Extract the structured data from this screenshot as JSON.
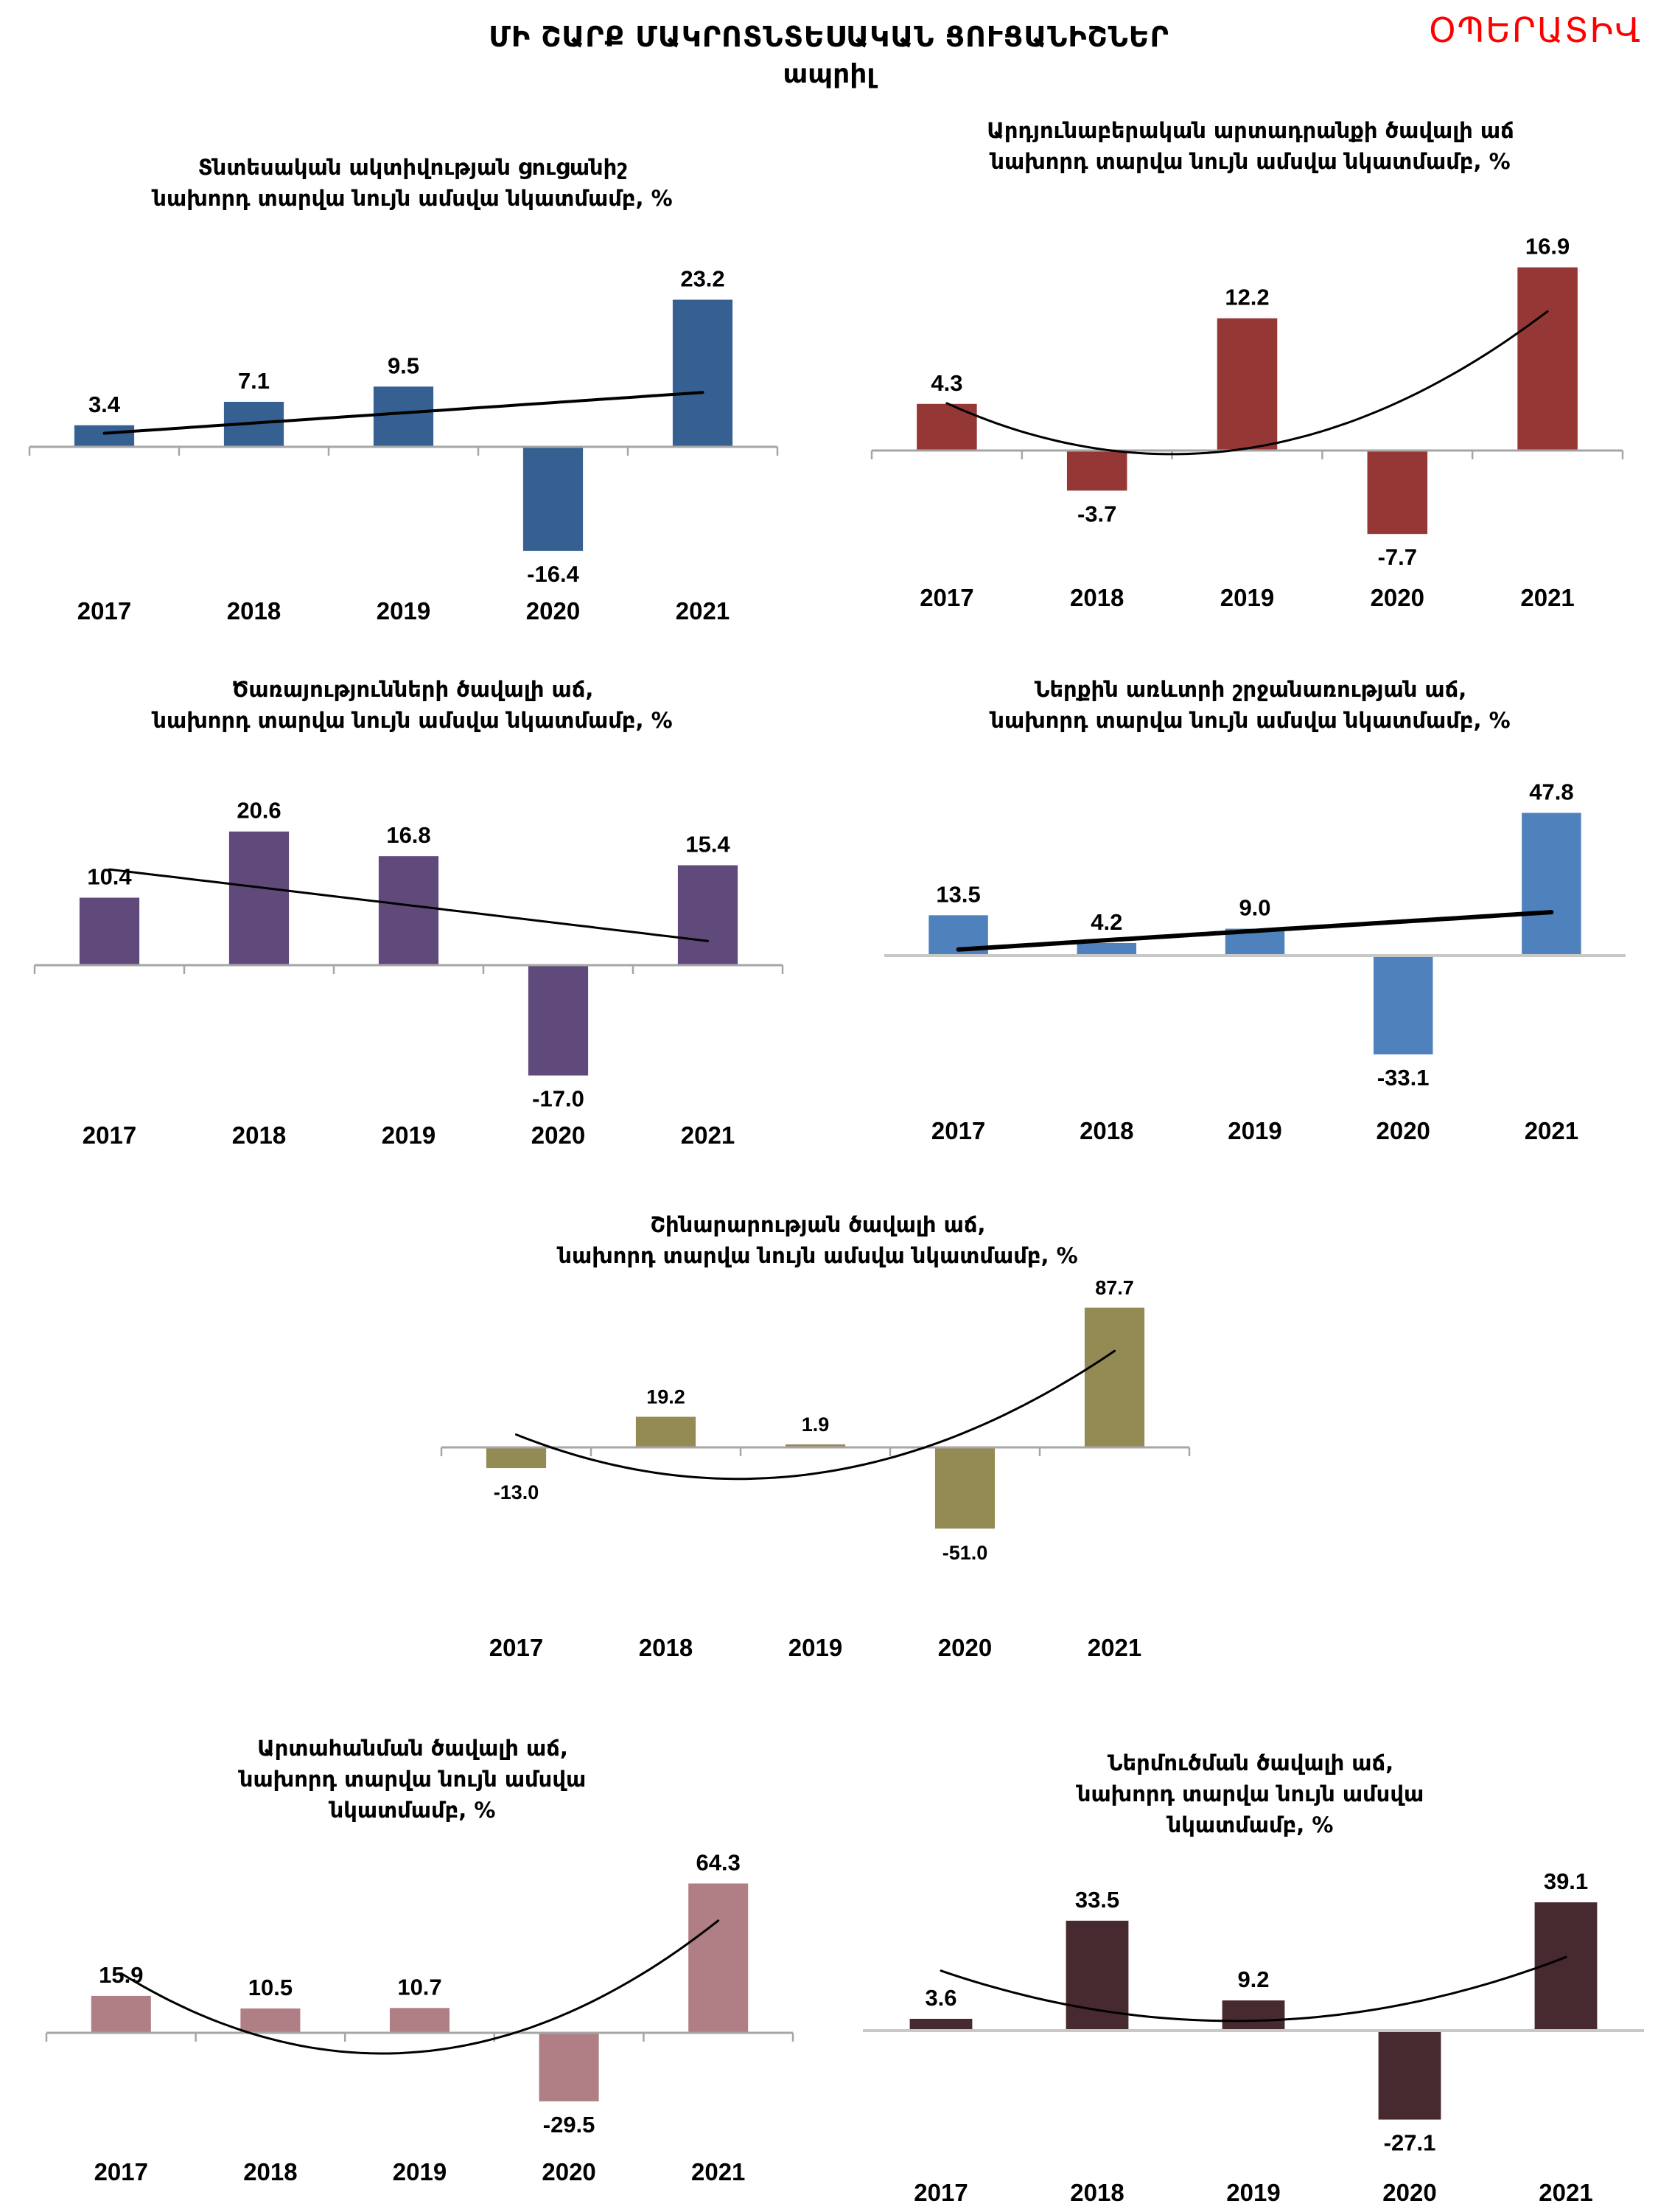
{
  "header": {
    "title": "ՄԻ ՇԱՐՔ ՄԱԿՐՈՏՆՏԵՍԱԿԱՆ ՑՈՒՑԱՆԻՇՆԵՐ",
    "subtitle": "ապրիլ",
    "badge": "ՕՊԵՐԱՏԻՎ",
    "badge_color": "#ff0000"
  },
  "chart_data": [
    {
      "id": "economic-activity",
      "type": "bar",
      "title_lines": [
        "Տնտեսական ակտիվության ցուցանիշ",
        "նախորդ տարվա նույն ամսվա նկատմամբ, %"
      ],
      "categories": [
        "2017",
        "2018",
        "2019",
        "2020",
        "2021"
      ],
      "values": [
        3.4,
        7.1,
        9.5,
        -16.4,
        23.2
      ],
      "labels": [
        "3.4",
        "7.1",
        "9.5",
        "-16.4",
        "23.2"
      ],
      "color": "#376092",
      "trendline": "linear",
      "axis_ticks": true,
      "xlabel": "",
      "ylabel": "",
      "grid": false,
      "legend": "none"
    },
    {
      "id": "industrial-output",
      "type": "bar",
      "title_lines": [
        "Արդյունաբերական արտադրանքի ծավալի աճ",
        "նախորդ տարվա նույն ամսվա նկատմամբ, %"
      ],
      "categories": [
        "2017",
        "2018",
        "2019",
        "2020",
        "2021"
      ],
      "values": [
        4.3,
        -3.7,
        12.2,
        -7.7,
        16.9
      ],
      "labels": [
        "4.3",
        "-3.7",
        "12.2",
        "-7.7",
        "16.9"
      ],
      "color": "#953735",
      "trendline": "polynomial",
      "axis_ticks": true,
      "xlabel": "",
      "ylabel": "",
      "grid": false,
      "legend": "none"
    },
    {
      "id": "services",
      "type": "bar",
      "title_lines": [
        "Ծառայությունների ծավալի աճ,",
        "նախորդ տարվա նույն ամսվա նկատմամբ, %"
      ],
      "categories": [
        "2017",
        "2018",
        "2019",
        "2020",
        "2021"
      ],
      "values": [
        10.4,
        20.6,
        16.8,
        -17.0,
        15.4
      ],
      "labels": [
        "10.4",
        "20.6",
        "16.8",
        "-17.0",
        "15.4"
      ],
      "color": "#604a7b",
      "trendline": "linear",
      "axis_ticks": true,
      "xlabel": "",
      "ylabel": "",
      "grid": false,
      "legend": "none"
    },
    {
      "id": "retail-trade",
      "type": "bar",
      "title_lines": [
        "Ներքին առևտրի շրջանառության աճ,",
        "նախորդ տարվա նույն ամսվա նկատմամբ, %"
      ],
      "categories": [
        "2017",
        "2018",
        "2019",
        "2020",
        "2021"
      ],
      "values": [
        13.5,
        4.2,
        9.0,
        -33.1,
        47.8
      ],
      "labels": [
        "13.5",
        "4.2",
        "9.0",
        "-33.1",
        "47.8"
      ],
      "color": "#4f81bd",
      "trendline": "linear",
      "axis_ticks": false,
      "xlabel": "",
      "ylabel": "",
      "grid": false,
      "legend": "none"
    },
    {
      "id": "construction",
      "type": "bar",
      "title_lines": [
        "Շինարարության ծավալի աճ,",
        "նախորդ տարվա նույն ամսվա նկատմամբ, %"
      ],
      "categories": [
        "2017",
        "2018",
        "2019",
        "2020",
        "2021"
      ],
      "values": [
        -13.0,
        19.2,
        1.9,
        -51.0,
        87.7
      ],
      "labels": [
        "-13.0",
        "19.2",
        "1.9",
        "-51.0",
        "87.7"
      ],
      "color": "#948a54",
      "trendline": "polynomial",
      "axis_ticks": true,
      "xlabel": "",
      "ylabel": "",
      "grid": false,
      "legend": "none"
    },
    {
      "id": "exports",
      "type": "bar",
      "title_lines": [
        "Արտահանման ծավալի աճ,",
        "նախորդ տարվա նույն ամսվա",
        "նկատմամբ, %"
      ],
      "categories": [
        "2017",
        "2018",
        "2019",
        "2020",
        "2021"
      ],
      "values": [
        15.9,
        10.5,
        10.7,
        -29.5,
        64.3
      ],
      "labels": [
        "15.9",
        "10.5",
        "10.7",
        "-29.5",
        "64.3"
      ],
      "color": "#b07f85",
      "trendline": "polynomial",
      "axis_ticks": true,
      "xlabel": "",
      "ylabel": "",
      "grid": false,
      "legend": "none"
    },
    {
      "id": "imports",
      "type": "bar",
      "title_lines": [
        "Ներմուծման ծավալի աճ,",
        "նախորդ տարվա նույն ամսվա",
        "նկատմամբ, %"
      ],
      "categories": [
        "2017",
        "2018",
        "2019",
        "2020",
        "2021"
      ],
      "values": [
        3.6,
        33.5,
        9.2,
        -27.1,
        39.1
      ],
      "labels": [
        "3.6",
        "33.5",
        "9.2",
        "-27.1",
        "39.1"
      ],
      "color": "#472a2f",
      "trendline": "polynomial",
      "axis_ticks": false,
      "xlabel": "",
      "ylabel": "",
      "grid": false,
      "legend": "none"
    }
  ]
}
